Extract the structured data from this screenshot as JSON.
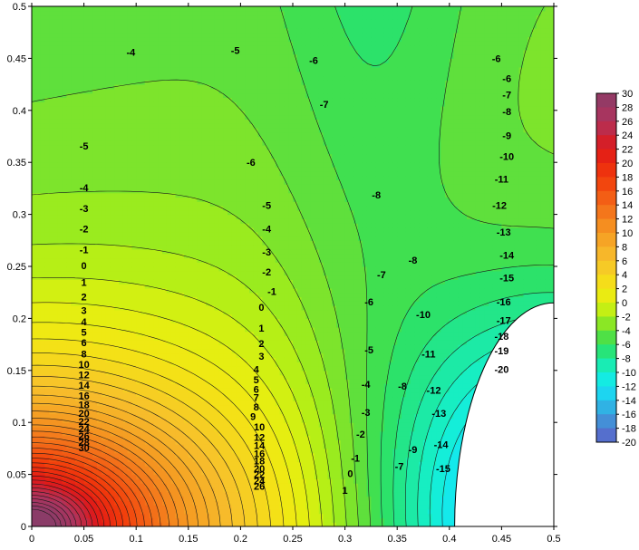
{
  "chart_data": {
    "type": "contour",
    "title": "",
    "xlabel": "",
    "ylabel": "",
    "xlim": [
      0,
      0.5
    ],
    "ylim": [
      0,
      0.5
    ],
    "x_ticks": [
      "0",
      "0.05",
      "0.1",
      "0.15",
      "0.2",
      "0.25",
      "0.3",
      "0.35",
      "0.4",
      "0.45",
      "0.5"
    ],
    "y_ticks": [
      "0",
      "0.05",
      "0.1",
      "0.15",
      "0.2",
      "0.25",
      "0.3",
      "0.35",
      "0.4",
      "0.45",
      "0.5"
    ],
    "contour_interval": 1,
    "colorbar": {
      "min": -20,
      "max": 30,
      "step": 2,
      "labels": [
        "30",
        "28",
        "26",
        "24",
        "22",
        "20",
        "18",
        "16",
        "14",
        "12",
        "10",
        "8",
        "6",
        "4",
        "2",
        "0",
        "-2",
        "-4",
        "-6",
        "-8",
        "-10",
        "-12",
        "-14",
        "-16",
        "-18",
        "-20"
      ],
      "stops": [
        {
          "value": 30,
          "color": "#8b3c68"
        },
        {
          "value": 26,
          "color": "#b0335c"
        },
        {
          "value": 22,
          "color": "#e01818"
        },
        {
          "value": 18,
          "color": "#f23a0a"
        },
        {
          "value": 14,
          "color": "#f36a18"
        },
        {
          "value": 10,
          "color": "#f59a22"
        },
        {
          "value": 6,
          "color": "#f7c02c"
        },
        {
          "value": 2,
          "color": "#f4e614"
        },
        {
          "value": 0,
          "color": "#e0f010"
        },
        {
          "value": -2,
          "color": "#a8ee18"
        },
        {
          "value": -4,
          "color": "#6ee032"
        },
        {
          "value": -6,
          "color": "#30e05a"
        },
        {
          "value": -8,
          "color": "#1ee898"
        },
        {
          "value": -10,
          "color": "#14f0d0"
        },
        {
          "value": -12,
          "color": "#14e6f4"
        },
        {
          "value": -14,
          "color": "#26c4ec"
        },
        {
          "value": -16,
          "color": "#3aa0dc"
        },
        {
          "value": -18,
          "color": "#4e7ed2"
        },
        {
          "value": -20,
          "color": "#5c60c8"
        }
      ]
    },
    "domain_blank_region": "white quarter-circle cutout in bottom-right corner (approx. centre (0.5, 0), radius 0.09)",
    "contour_labels": [
      {
        "text": "-4",
        "x": 0.095,
        "y": 0.455
      },
      {
        "text": "-5",
        "x": 0.195,
        "y": 0.457
      },
      {
        "text": "-6",
        "x": 0.27,
        "y": 0.447
      },
      {
        "text": "-7",
        "x": 0.28,
        "y": 0.405
      },
      {
        "text": "-6",
        "x": 0.445,
        "y": 0.449
      },
      {
        "text": "-6",
        "x": 0.455,
        "y": 0.43
      },
      {
        "text": "-7",
        "x": 0.455,
        "y": 0.414
      },
      {
        "text": "-8",
        "x": 0.455,
        "y": 0.398
      },
      {
        "text": "-9",
        "x": 0.455,
        "y": 0.375
      },
      {
        "text": "-10",
        "x": 0.455,
        "y": 0.355
      },
      {
        "text": "-11",
        "x": 0.45,
        "y": 0.333
      },
      {
        "text": "-12",
        "x": 0.448,
        "y": 0.308
      },
      {
        "text": "-13",
        "x": 0.452,
        "y": 0.282
      },
      {
        "text": "-14",
        "x": 0.455,
        "y": 0.26
      },
      {
        "text": "-15",
        "x": 0.455,
        "y": 0.238
      },
      {
        "text": "-16",
        "x": 0.452,
        "y": 0.215
      },
      {
        "text": "-17",
        "x": 0.452,
        "y": 0.197
      },
      {
        "text": "-18",
        "x": 0.45,
        "y": 0.182
      },
      {
        "text": "-19",
        "x": 0.45,
        "y": 0.168
      },
      {
        "text": "-20",
        "x": 0.45,
        "y": 0.15
      },
      {
        "text": "-5",
        "x": 0.05,
        "y": 0.365
      },
      {
        "text": "-4",
        "x": 0.05,
        "y": 0.325
      },
      {
        "text": "-3",
        "x": 0.05,
        "y": 0.305
      },
      {
        "text": "-2",
        "x": 0.05,
        "y": 0.285
      },
      {
        "text": "-1",
        "x": 0.05,
        "y": 0.265
      },
      {
        "text": "0",
        "x": 0.05,
        "y": 0.25
      },
      {
        "text": "1",
        "x": 0.05,
        "y": 0.234
      },
      {
        "text": "2",
        "x": 0.05,
        "y": 0.22
      },
      {
        "text": "3",
        "x": 0.05,
        "y": 0.207
      },
      {
        "text": "4",
        "x": 0.05,
        "y": 0.196
      },
      {
        "text": "5",
        "x": 0.05,
        "y": 0.186
      },
      {
        "text": "6",
        "x": 0.05,
        "y": 0.176
      },
      {
        "text": "8",
        "x": 0.05,
        "y": 0.165
      },
      {
        "text": "10",
        "x": 0.05,
        "y": 0.155
      },
      {
        "text": "12",
        "x": 0.05,
        "y": 0.145
      },
      {
        "text": "14",
        "x": 0.05,
        "y": 0.135
      },
      {
        "text": "16",
        "x": 0.05,
        "y": 0.125
      },
      {
        "text": "18",
        "x": 0.05,
        "y": 0.116
      },
      {
        "text": "20",
        "x": 0.05,
        "y": 0.108
      },
      {
        "text": "22",
        "x": 0.05,
        "y": 0.1
      },
      {
        "text": "24",
        "x": 0.05,
        "y": 0.093
      },
      {
        "text": "26",
        "x": 0.05,
        "y": 0.086
      },
      {
        "text": "28",
        "x": 0.05,
        "y": 0.08
      },
      {
        "text": "30",
        "x": 0.05,
        "y": 0.075
      },
      {
        "text": "-6",
        "x": 0.21,
        "y": 0.349
      },
      {
        "text": "-5",
        "x": 0.225,
        "y": 0.308
      },
      {
        "text": "-4",
        "x": 0.225,
        "y": 0.285
      },
      {
        "text": "-3",
        "x": 0.225,
        "y": 0.263
      },
      {
        "text": "-2",
        "x": 0.225,
        "y": 0.244
      },
      {
        "text": "-1",
        "x": 0.23,
        "y": 0.225
      },
      {
        "text": "0",
        "x": 0.22,
        "y": 0.21
      },
      {
        "text": "1",
        "x": 0.22,
        "y": 0.19
      },
      {
        "text": "2",
        "x": 0.22,
        "y": 0.175
      },
      {
        "text": "3",
        "x": 0.22,
        "y": 0.163
      },
      {
        "text": "4",
        "x": 0.215,
        "y": 0.15
      },
      {
        "text": "5",
        "x": 0.215,
        "y": 0.14
      },
      {
        "text": "6",
        "x": 0.215,
        "y": 0.131
      },
      {
        "text": "7",
        "x": 0.215,
        "y": 0.123
      },
      {
        "text": "8",
        "x": 0.215,
        "y": 0.114
      },
      {
        "text": "9",
        "x": 0.212,
        "y": 0.105
      },
      {
        "text": "10",
        "x": 0.218,
        "y": 0.095
      },
      {
        "text": "12",
        "x": 0.218,
        "y": 0.085
      },
      {
        "text": "14",
        "x": 0.218,
        "y": 0.077
      },
      {
        "text": "16",
        "x": 0.218,
        "y": 0.069
      },
      {
        "text": "18",
        "x": 0.218,
        "y": 0.062
      },
      {
        "text": "20",
        "x": 0.218,
        "y": 0.055
      },
      {
        "text": "22",
        "x": 0.218,
        "y": 0.049
      },
      {
        "text": "24",
        "x": 0.218,
        "y": 0.043
      },
      {
        "text": "26",
        "x": 0.218,
        "y": 0.038
      },
      {
        "text": "-8",
        "x": 0.33,
        "y": 0.318
      },
      {
        "text": "-8",
        "x": 0.365,
        "y": 0.255
      },
      {
        "text": "-7",
        "x": 0.335,
        "y": 0.241
      },
      {
        "text": "-6",
        "x": 0.323,
        "y": 0.215
      },
      {
        "text": "-5",
        "x": 0.323,
        "y": 0.169
      },
      {
        "text": "-4",
        "x": 0.32,
        "y": 0.136
      },
      {
        "text": "-3",
        "x": 0.32,
        "y": 0.109
      },
      {
        "text": "-2",
        "x": 0.315,
        "y": 0.088
      },
      {
        "text": "-1",
        "x": 0.31,
        "y": 0.065
      },
      {
        "text": "0",
        "x": 0.305,
        "y": 0.05
      },
      {
        "text": "1",
        "x": 0.3,
        "y": 0.034
      },
      {
        "text": "-10",
        "x": 0.375,
        "y": 0.203
      },
      {
        "text": "-11",
        "x": 0.38,
        "y": 0.165
      },
      {
        "text": "-12",
        "x": 0.385,
        "y": 0.13
      },
      {
        "text": "-13",
        "x": 0.39,
        "y": 0.108
      },
      {
        "text": "-14",
        "x": 0.392,
        "y": 0.078
      },
      {
        "text": "-15",
        "x": 0.394,
        "y": 0.055
      },
      {
        "text": "-8",
        "x": 0.355,
        "y": 0.134
      },
      {
        "text": "-9",
        "x": 0.365,
        "y": 0.073
      },
      {
        "text": "-7",
        "x": 0.352,
        "y": 0.057
      }
    ]
  }
}
